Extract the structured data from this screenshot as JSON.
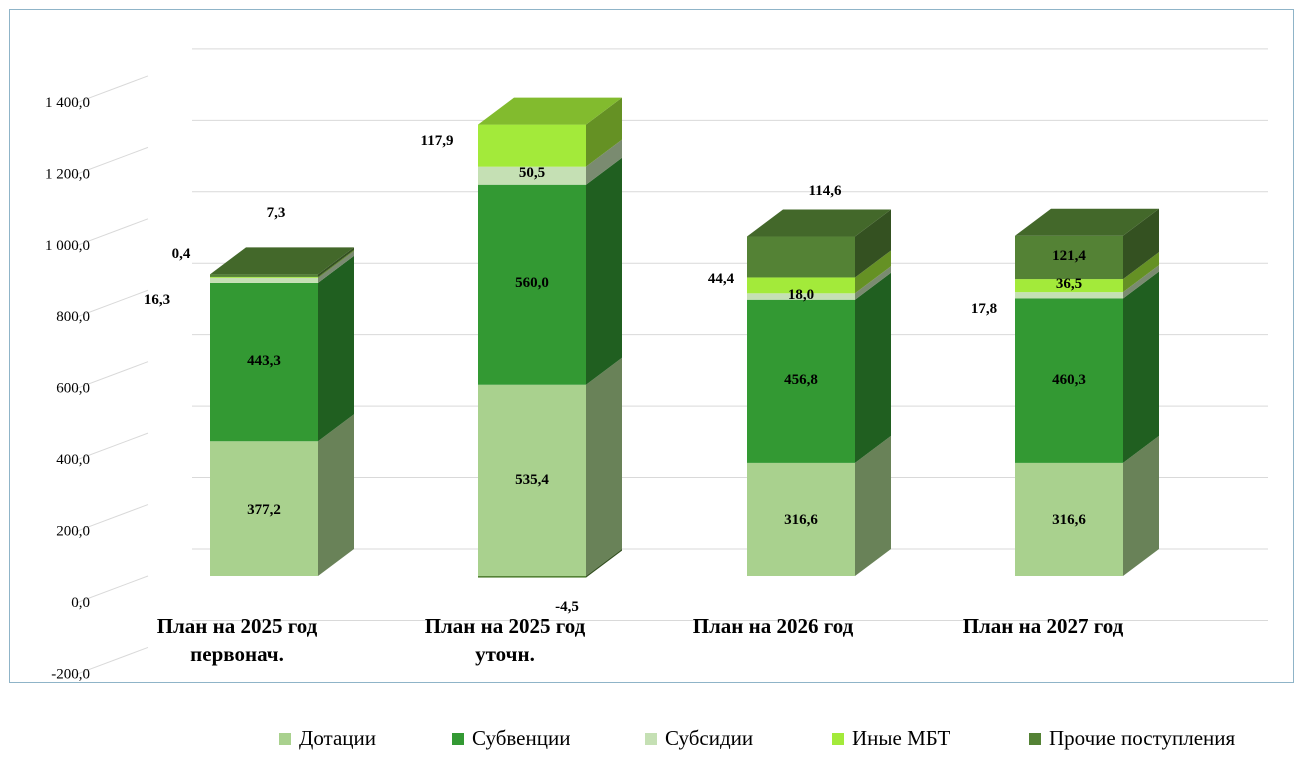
{
  "chart_data": {
    "type": "bar",
    "stacked": true,
    "three_d": true,
    "title": "",
    "xlabel": "",
    "ylabel": "",
    "ylim": [
      -200,
      1400
    ],
    "yticks": [
      -200,
      0,
      200,
      400,
      600,
      800,
      1000,
      1200,
      1400
    ],
    "ytick_labels": [
      "-200,0",
      "0,0",
      "200,0",
      "400,0",
      "600,0",
      "800,0",
      "1 000,0",
      "1 200,0",
      "1 400,0"
    ],
    "grid": true,
    "legend_position": "bottom",
    "categories": [
      [
        "План на 2025 год",
        "первонач."
      ],
      [
        "План на 2025 год",
        "уточн."
      ],
      [
        "План на 2026 год"
      ],
      [
        "План на 2027 год"
      ]
    ],
    "series": [
      {
        "name": "Дотации",
        "color": "#a9d18e",
        "values": [
          377.2,
          535.4,
          316.6,
          316.6
        ],
        "labels": [
          "377,2",
          "535,4",
          "316,6",
          "316,6"
        ]
      },
      {
        "name": "Субвенции",
        "color": "#339933",
        "values": [
          443.3,
          560.0,
          456.8,
          460.3
        ],
        "labels": [
          "443,3",
          "560,0",
          "456,8",
          "460,3"
        ]
      },
      {
        "name": "Субсидии",
        "color": "#c5e0b4",
        "values": [
          16.3,
          50.5,
          18.0,
          17.8
        ],
        "labels": [
          "16,3",
          "50,5",
          "18,0",
          "17,8"
        ]
      },
      {
        "name": "Иные МБТ",
        "color": "#a3ea3a",
        "values": [
          0.4,
          117.9,
          44.4,
          36.5
        ],
        "labels": [
          "0,4",
          "117,9",
          "44,4",
          "36,5"
        ]
      },
      {
        "name": "Прочие поступления",
        "color": "#548235",
        "values": [
          7.3,
          -4.5,
          114.6,
          121.4
        ],
        "labels": [
          "7,3",
          "-4,5",
          "114,6",
          "121,4"
        ]
      }
    ]
  }
}
